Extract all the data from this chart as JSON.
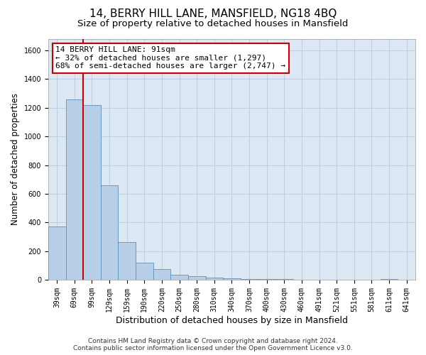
{
  "title": "14, BERRY HILL LANE, MANSFIELD, NG18 4BQ",
  "subtitle": "Size of property relative to detached houses in Mansfield",
  "xlabel": "Distribution of detached houses by size in Mansfield",
  "ylabel": "Number of detached properties",
  "footer_line1": "Contains HM Land Registry data © Crown copyright and database right 2024.",
  "footer_line2": "Contains public sector information licensed under the Open Government Licence v3.0.",
  "bar_labels": [
    "39sqm",
    "69sqm",
    "99sqm",
    "129sqm",
    "159sqm",
    "190sqm",
    "220sqm",
    "250sqm",
    "280sqm",
    "310sqm",
    "340sqm",
    "370sqm",
    "400sqm",
    "430sqm",
    "460sqm",
    "491sqm",
    "521sqm",
    "551sqm",
    "581sqm",
    "611sqm",
    "641sqm"
  ],
  "bar_values": [
    370,
    1260,
    1220,
    660,
    265,
    120,
    75,
    35,
    25,
    15,
    8,
    5,
    4,
    3,
    2,
    0,
    0,
    0,
    0,
    7,
    0
  ],
  "bar_color": "#b8cfe8",
  "bar_edge_color": "#5b8fbe",
  "red_line_x": 1.5,
  "annotation_text": "14 BERRY HILL LANE: 91sqm\n← 32% of detached houses are smaller (1,297)\n68% of semi-detached houses are larger (2,747) →",
  "annotation_box_color": "#ffffff",
  "annotation_box_edge": "#cc0000",
  "ylim": [
    0,
    1680
  ],
  "yticks": [
    0,
    200,
    400,
    600,
    800,
    1000,
    1200,
    1400,
    1600
  ],
  "grid_color": "#c0d0e0",
  "bg_color": "#dce8f4",
  "red_line_color": "#cc0000",
  "title_fontsize": 11,
  "subtitle_fontsize": 9.5,
  "tick_fontsize": 7,
  "ylabel_fontsize": 8.5,
  "xlabel_fontsize": 9,
  "annotation_fontsize": 8,
  "footer_fontsize": 6.5
}
